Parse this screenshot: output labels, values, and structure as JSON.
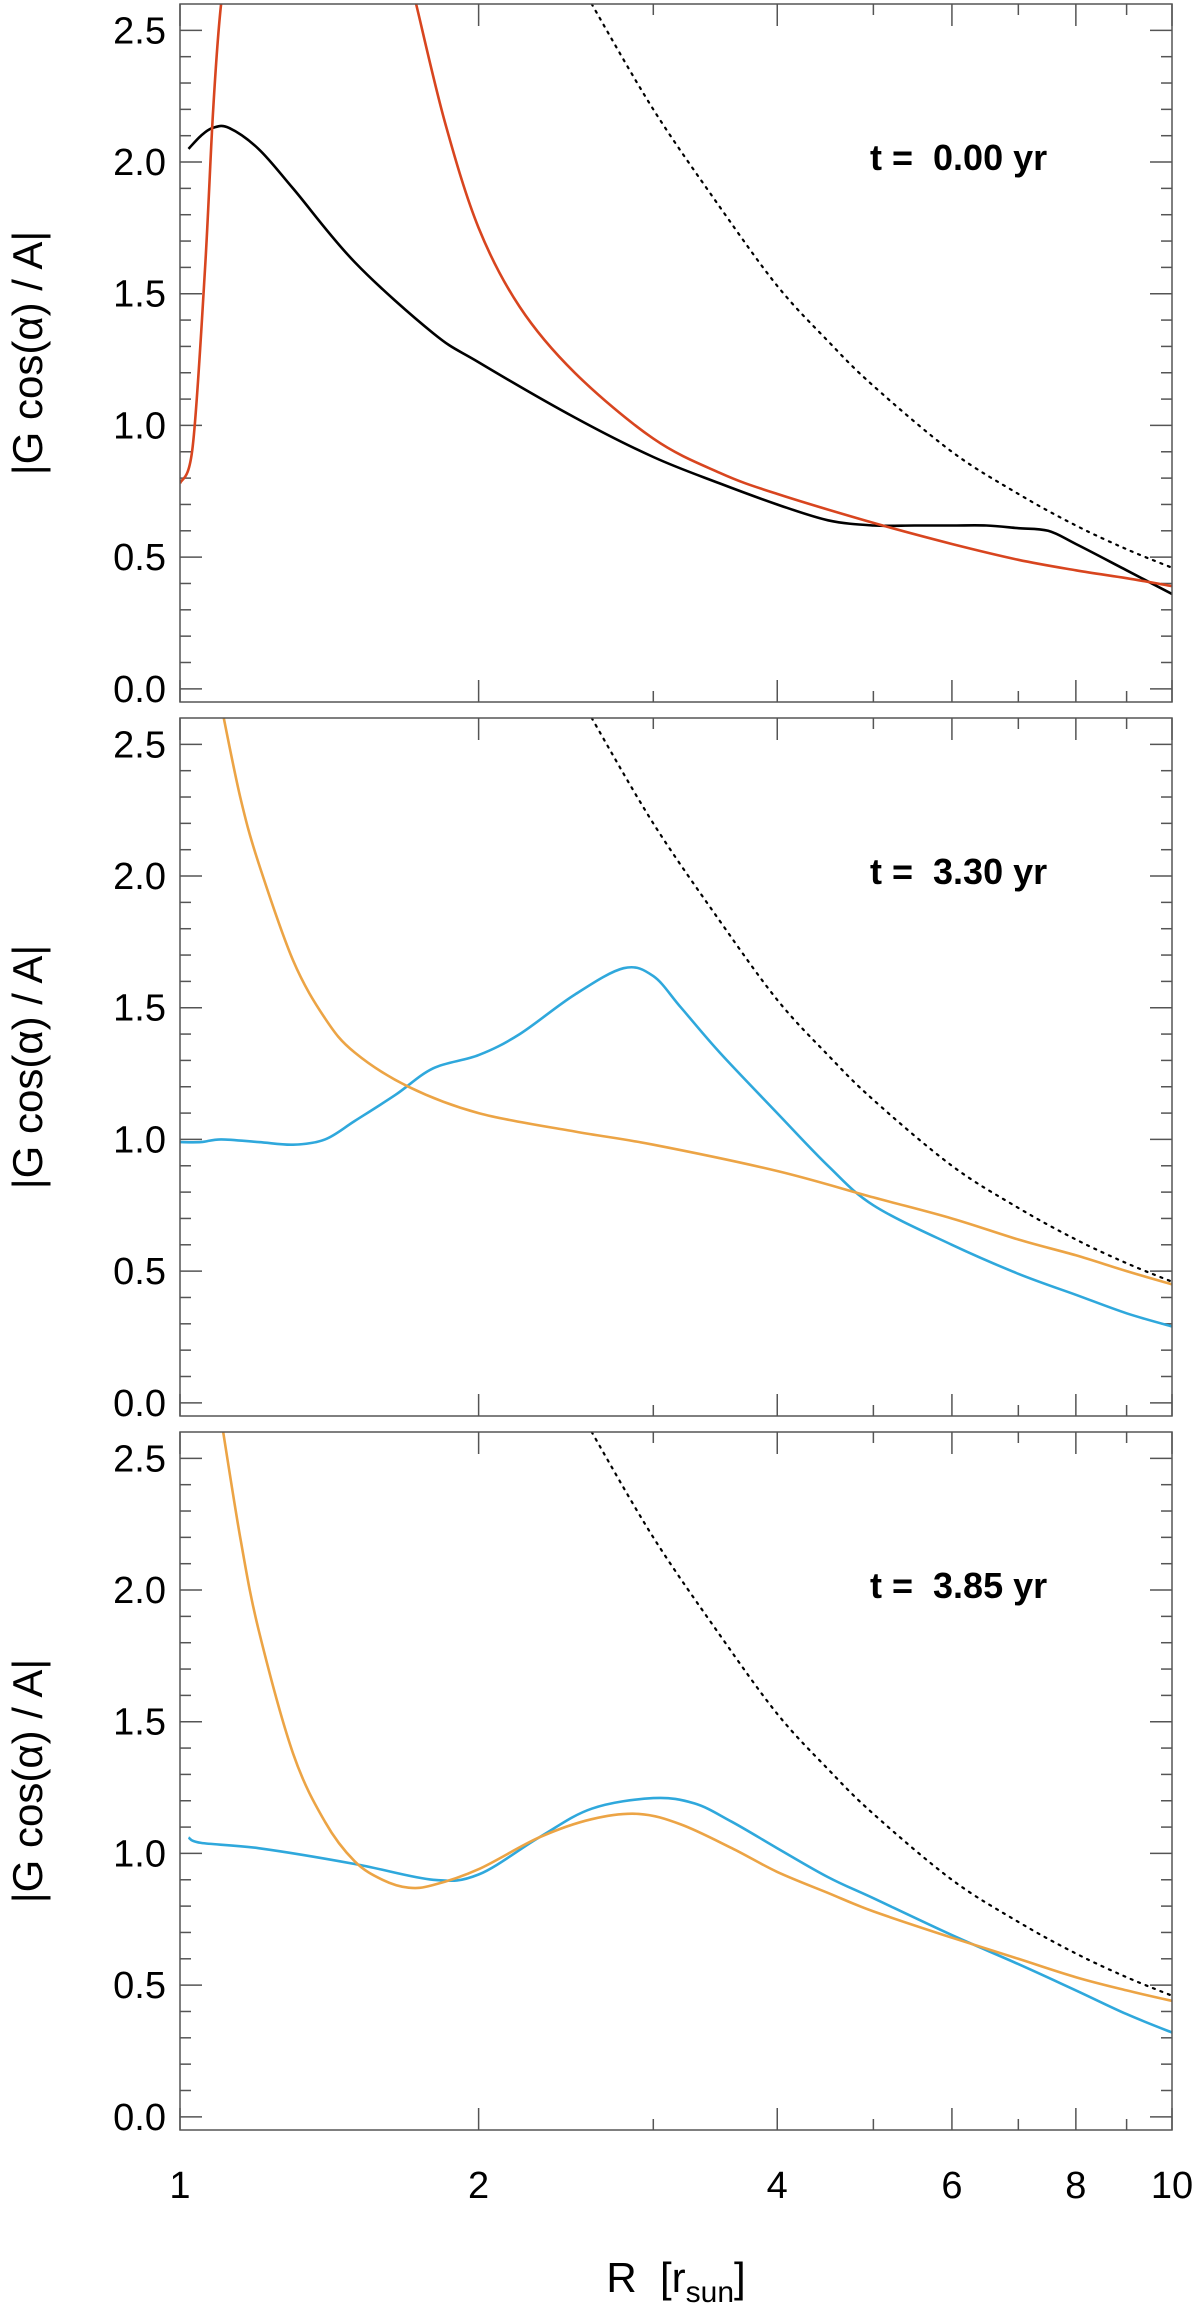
{
  "chart_data": [
    {
      "type": "line",
      "annotation": "t =  0.00 yr",
      "xlabel": "R  [r",
      "xlabel_sub": "sun",
      "xlabel_close": "]",
      "ylabel": "|G cos(α) / A|",
      "xscale": "log",
      "xlim": [
        1,
        10
      ],
      "ylim": [
        -0.05,
        2.6
      ],
      "xticks": [
        1,
        2,
        4,
        6,
        8,
        10
      ],
      "xtick_labels": [
        "1",
        "2",
        "4",
        "6",
        "8",
        "10"
      ],
      "yticks": [
        0.0,
        0.5,
        1.0,
        1.5,
        2.0,
        2.5
      ],
      "ytick_labels": [
        "0.0",
        "0.5",
        "1.0",
        "1.5",
        "2.0",
        "2.5"
      ],
      "series": [
        {
          "color": "#000000",
          "style": "solid",
          "x": [
            1.02,
            1.05,
            1.08,
            1.12,
            1.2,
            1.3,
            1.5,
            1.8,
            2.0,
            2.5,
            3.0,
            3.5,
            4.0,
            4.5,
            5.0,
            5.5,
            6.0,
            6.5,
            7.0,
            7.5,
            8.0,
            9.0,
            10.0
          ],
          "y": [
            2.05,
            2.1,
            2.13,
            2.13,
            2.05,
            1.9,
            1.62,
            1.35,
            1.24,
            1.03,
            0.88,
            0.78,
            0.7,
            0.64,
            0.62,
            0.62,
            0.62,
            0.62,
            0.61,
            0.6,
            0.55,
            0.45,
            0.36
          ]
        },
        {
          "color": "#d8451f",
          "style": "solid",
          "x": [
            1.0,
            1.03,
            1.06,
            1.08,
            1.1,
            1.12
          ],
          "y": [
            0.78,
            0.92,
            1.6,
            2.2,
            2.6,
            2.75
          ]
        },
        {
          "color": "#d8451f",
          "style": "solid",
          "x": [
            1.73,
            1.85,
            2.0,
            2.2,
            2.5,
            3.0,
            3.5,
            4.0,
            5.0,
            6.0,
            7.0,
            8.0,
            9.0,
            10.0
          ],
          "y": [
            2.6,
            2.15,
            1.75,
            1.45,
            1.2,
            0.95,
            0.82,
            0.74,
            0.63,
            0.55,
            0.49,
            0.45,
            0.42,
            0.39
          ]
        },
        {
          "color": "#000000",
          "style": "dotted",
          "x": [
            2.6,
            3.0,
            3.5,
            4.0,
            4.5,
            5.0,
            6.0,
            7.0,
            8.0,
            9.0,
            10.0
          ],
          "y": [
            2.6,
            2.2,
            1.83,
            1.53,
            1.32,
            1.15,
            0.9,
            0.74,
            0.62,
            0.53,
            0.46
          ]
        }
      ]
    },
    {
      "type": "line",
      "annotation": "t =  3.30 yr",
      "ylabel": "|G cos(α) / A|",
      "xscale": "log",
      "xlim": [
        1,
        10
      ],
      "ylim": [
        -0.05,
        2.6
      ],
      "xticks": [
        1,
        2,
        4,
        6,
        8,
        10
      ],
      "yticks": [
        0.0,
        0.5,
        1.0,
        1.5,
        2.0,
        2.5
      ],
      "ytick_labels": [
        "0.0",
        "0.5",
        "1.0",
        "1.5",
        "2.0",
        "2.5"
      ],
      "series": [
        {
          "color": "#2fa8dc",
          "style": "solid",
          "x": [
            1.0,
            1.05,
            1.1,
            1.2,
            1.3,
            1.4,
            1.5,
            1.65,
            1.8,
            2.0,
            2.2,
            2.5,
            2.8,
            3.0,
            3.2,
            3.5,
            4.0,
            4.5,
            5.0,
            6.0,
            7.0,
            8.0,
            9.0,
            10.0
          ],
          "y": [
            0.99,
            0.99,
            1.0,
            0.99,
            0.98,
            1.0,
            1.07,
            1.17,
            1.27,
            1.32,
            1.4,
            1.55,
            1.65,
            1.62,
            1.5,
            1.33,
            1.1,
            0.9,
            0.75,
            0.6,
            0.49,
            0.41,
            0.34,
            0.29
          ]
        },
        {
          "color": "#eca445",
          "style": "solid",
          "x": [
            1.1,
            1.15,
            1.2,
            1.3,
            1.4,
            1.5,
            1.7,
            2.0,
            2.5,
            3.0,
            4.0,
            5.0,
            6.0,
            7.0,
            8.0,
            9.0,
            10.0
          ],
          "y": [
            2.65,
            2.3,
            2.05,
            1.68,
            1.46,
            1.33,
            1.2,
            1.1,
            1.03,
            0.98,
            0.88,
            0.78,
            0.7,
            0.62,
            0.56,
            0.5,
            0.45
          ]
        },
        {
          "color": "#000000",
          "style": "dotted",
          "x": [
            2.6,
            3.0,
            3.5,
            4.0,
            4.5,
            5.0,
            6.0,
            7.0,
            8.0,
            9.0,
            10.0
          ],
          "y": [
            2.6,
            2.2,
            1.83,
            1.53,
            1.32,
            1.15,
            0.9,
            0.74,
            0.62,
            0.53,
            0.46
          ]
        }
      ]
    },
    {
      "type": "line",
      "annotation": "t =  3.85 yr",
      "ylabel": "|G cos(α) / A|",
      "xscale": "log",
      "xlim": [
        1,
        10
      ],
      "ylim": [
        -0.05,
        2.6
      ],
      "xticks": [
        1,
        2,
        4,
        6,
        8,
        10
      ],
      "yticks": [
        0.0,
        0.5,
        1.0,
        1.5,
        2.0,
        2.5
      ],
      "ytick_labels": [
        "0.0",
        "0.5",
        "1.0",
        "1.5",
        "2.0",
        "2.5"
      ],
      "series": [
        {
          "color": "#2fa8dc",
          "style": "solid",
          "x": [
            1.02,
            1.05,
            1.2,
            1.5,
            1.8,
            2.0,
            2.3,
            2.6,
            3.0,
            3.3,
            3.6,
            4.0,
            4.5,
            5.0,
            6.0,
            7.0,
            8.0,
            9.0,
            10.0
          ],
          "y": [
            1.06,
            1.04,
            1.02,
            0.96,
            0.9,
            0.92,
            1.06,
            1.17,
            1.21,
            1.19,
            1.12,
            1.02,
            0.91,
            0.83,
            0.69,
            0.58,
            0.48,
            0.39,
            0.32
          ]
        },
        {
          "color": "#eca445",
          "style": "solid",
          "x": [
            1.1,
            1.15,
            1.2,
            1.3,
            1.4,
            1.5,
            1.6,
            1.7,
            1.8,
            2.0,
            2.3,
            2.6,
            2.9,
            3.2,
            3.6,
            4.0,
            4.5,
            5.0,
            6.0,
            7.0,
            8.0,
            9.0,
            10.0
          ],
          "y": [
            2.65,
            2.2,
            1.85,
            1.38,
            1.12,
            0.97,
            0.9,
            0.87,
            0.88,
            0.94,
            1.06,
            1.13,
            1.15,
            1.11,
            1.02,
            0.93,
            0.85,
            0.78,
            0.68,
            0.6,
            0.53,
            0.48,
            0.44
          ]
        },
        {
          "color": "#000000",
          "style": "dotted",
          "x": [
            2.6,
            3.0,
            3.5,
            4.0,
            4.5,
            5.0,
            6.0,
            7.0,
            8.0,
            9.0,
            10.0
          ],
          "y": [
            2.6,
            2.2,
            1.83,
            1.53,
            1.32,
            1.15,
            0.9,
            0.74,
            0.62,
            0.53,
            0.46
          ]
        }
      ]
    }
  ]
}
